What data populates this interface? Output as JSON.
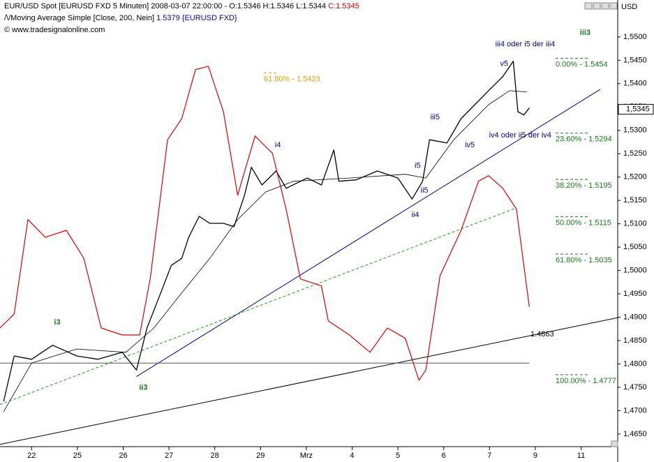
{
  "header": {
    "title": "EUR/USD Spot [EURUSD FXD  5 Minuten] 2008-03-07 22:00:00 - O:1.5346 H:1.5346 L:1.5344",
    "close": "C:1.5345",
    "indicator": "/\\/Moving Average Simple [Close, 200, Nein]",
    "indicator_value": "1.5379 {EURUSD FXD}",
    "copyright": "© www.tradesignalonline.com",
    "unit": "USD"
  },
  "chart_data": {
    "type": "line",
    "xlim": [
      -0.69,
      12.8
    ],
    "ylim": [
      1.4623,
      1.5579
    ],
    "xticks": [
      {
        "value": 0,
        "label": "22"
      },
      {
        "value": 1,
        "label": "25"
      },
      {
        "value": 2,
        "label": "26"
      },
      {
        "value": 3,
        "label": "27"
      },
      {
        "value": 4,
        "label": "28"
      },
      {
        "value": 5,
        "label": "29"
      },
      {
        "value": 6,
        "label": "Mrz"
      },
      {
        "value": 7,
        "label": "4"
      },
      {
        "value": 8,
        "label": "5"
      },
      {
        "value": 9,
        "label": "6"
      },
      {
        "value": 10,
        "label": "7"
      },
      {
        "value": 11,
        "label": "9"
      },
      {
        "value": 12,
        "label": "11"
      }
    ],
    "yticks": [
      {
        "value": 1.465,
        "label": "1,4650"
      },
      {
        "value": 1.47,
        "label": "1,4700"
      },
      {
        "value": 1.475,
        "label": "1,4750"
      },
      {
        "value": 1.48,
        "label": "1,4800"
      },
      {
        "value": 1.485,
        "label": "1,4850"
      },
      {
        "value": 1.49,
        "label": "1,4900"
      },
      {
        "value": 1.495,
        "label": "1,4950"
      },
      {
        "value": 1.5,
        "label": "1,5000"
      },
      {
        "value": 1.505,
        "label": "1,5050"
      },
      {
        "value": 1.51,
        "label": "1,5100"
      },
      {
        "value": 1.515,
        "label": "1,5150"
      },
      {
        "value": 1.52,
        "label": "1,5200"
      },
      {
        "value": 1.525,
        "label": "1,5250"
      },
      {
        "value": 1.53,
        "label": "1,5300"
      },
      {
        "value": 1.535,
        "label": "1,5350"
      },
      {
        "value": 1.54,
        "label": "1,5400"
      },
      {
        "value": 1.545,
        "label": "1,5450"
      },
      {
        "value": 1.55,
        "label": "1,5500"
      }
    ],
    "series": [
      {
        "color": "#000000",
        "width": 1.3,
        "x": [
          -0.61,
          -0.38,
          0,
          0.46,
          0.99,
          1.45,
          1.98,
          2.29,
          2.52,
          2.82,
          3.05,
          3.28,
          3.43,
          3.66,
          3.89,
          4.19,
          4.42,
          4.65,
          4.8,
          5.03,
          5.34,
          5.56,
          6.02,
          6.33,
          6.6,
          6.71,
          7.09,
          7.55,
          8.0,
          8.31,
          8.54,
          8.69,
          9.07,
          9.38,
          9.68,
          9.98,
          10.29,
          10.52,
          10.62,
          10.75,
          10.87
        ],
        "values": [
          1.472,
          1.4817,
          1.481,
          1.484,
          1.4817,
          1.481,
          1.4825,
          1.4787,
          1.4877,
          1.4952,
          1.5011,
          1.5026,
          1.5071,
          1.5116,
          1.5101,
          1.5101,
          1.5094,
          1.5161,
          1.5221,
          1.5183,
          1.5213,
          1.5176,
          1.5198,
          1.5183,
          1.5258,
          1.5191,
          1.5194,
          1.5213,
          1.5198,
          1.5153,
          1.5191,
          1.528,
          1.5273,
          1.5325,
          1.5355,
          1.5385,
          1.5415,
          1.5448,
          1.534,
          1.5333,
          1.5348
        ]
      },
      {
        "color": "#000000",
        "width": 0.8,
        "x": [
          -0.61,
          0,
          0.99,
          2.06,
          2.67,
          3.28,
          3.89,
          4.5,
          5.11,
          5.72,
          6.94,
          8.16,
          8.61,
          9.22,
          9.98,
          10.44,
          10.82
        ],
        "values": [
          1.4698,
          1.4802,
          1.4832,
          1.4825,
          1.4877,
          1.4952,
          1.5026,
          1.5109,
          1.5168,
          1.5191,
          1.5198,
          1.5206,
          1.5198,
          1.528,
          1.5355,
          1.5385,
          1.5382
        ]
      },
      {
        "color": "#e00000",
        "width": 1.2,
        "x": [
          -0.69,
          -0.38,
          -0.08,
          0.3,
          0.76,
          1.14,
          1.52,
          1.98,
          2.36,
          2.59,
          2.97,
          3.28,
          3.58,
          3.86,
          4.19,
          4.5,
          4.88,
          5.26,
          5.56,
          5.87,
          6.33,
          6.48,
          6.94,
          7.39,
          7.77,
          8.16,
          8.46,
          8.61,
          8.92,
          9.38,
          9.76,
          9.98,
          10.29,
          10.59,
          10.75,
          10.87
        ],
        "values": [
          1.4877,
          1.4907,
          1.5109,
          1.5071,
          1.5086,
          1.5026,
          1.4877,
          1.4862,
          1.4862,
          1.4982,
          1.528,
          1.5325,
          1.543,
          1.5437,
          1.534,
          1.5161,
          1.5288,
          1.5251,
          1.5131,
          1.4982,
          1.4967,
          1.4892,
          1.4862,
          1.4825,
          1.4877,
          1.4855,
          1.4765,
          1.4787,
          1.4989,
          1.5086,
          1.5191,
          1.5203,
          1.5176,
          1.5131,
          1.5011,
          1.4922
        ]
      }
    ],
    "trendlines": [
      {
        "color": "#00008b",
        "dash": false,
        "x": [
          2.29,
          12.42
        ],
        "values": [
          1.4773,
          1.5388
        ]
      },
      {
        "color": "#000000",
        "dash": false,
        "x": [
          -0.69,
          12.8
        ],
        "values": [
          1.4628,
          1.4899
        ]
      },
      {
        "color": "#1a9a1a",
        "dash": true,
        "x": [
          -0.69,
          10.59
        ],
        "values": [
          1.4713,
          1.5134
        ]
      },
      {
        "color": "#555555",
        "dash": false,
        "x": [
          -0.69,
          10.87
        ],
        "values": [
          1.4802,
          1.4802
        ]
      }
    ],
    "fib_levels": [
      {
        "label": "0.00% - 1.5454",
        "value": 1.5454
      },
      {
        "label": "23.60% - 1.5294",
        "value": 1.5294
      },
      {
        "label": "38.20% - 1.5195",
        "value": 1.5195
      },
      {
        "label": "50.00% - 1.5115",
        "value": 1.5115
      },
      {
        "label": "61.80% - 1.5035",
        "value": 1.5035
      },
      {
        "label": "100.00% - 1.4777",
        "value": 1.4777
      }
    ],
    "fib_extra": {
      "label": "61.80% - 1.5423",
      "value": 1.5423
    },
    "line_label": 1.4863,
    "last_price": {
      "value": 1.5345,
      "label": "1,5345"
    },
    "wave_labels": [
      {
        "text": "i3",
        "x": 0.56,
        "y": 1.4889,
        "color": "#1a7a1a"
      },
      {
        "text": "ii3",
        "x": 2.44,
        "y": 1.4749,
        "color": "#1a7a1a"
      },
      {
        "text": "iii3",
        "x": 12.09,
        "y": 1.5509,
        "color": "#1a7a1a"
      },
      {
        "text": "i4",
        "x": 5.38,
        "y": 1.5268,
        "color": "#00008b"
      },
      {
        "text": "ii4",
        "x": 8.38,
        "y": 1.5119,
        "color": "#00008b"
      },
      {
        "text": "i5",
        "x": 8.43,
        "y": 1.5224,
        "color": "#00008b"
      },
      {
        "text": "ii5",
        "x": 8.58,
        "y": 1.5171,
        "color": "#00008b"
      },
      {
        "text": "iii5",
        "x": 8.81,
        "y": 1.5328,
        "color": "#00008b"
      },
      {
        "text": "iv5",
        "x": 9.57,
        "y": 1.5268,
        "color": "#00008b"
      },
      {
        "text": "v5",
        "x": 10.32,
        "y": 1.5442,
        "color": "#00008b"
      },
      {
        "text": "iii4 oder i5 der iii4",
        "x": 10.78,
        "y": 1.5484,
        "color": "#00008b"
      },
      {
        "text": "iv4 oder ii5 der iv4",
        "x": 10.67,
        "y": 1.5289,
        "color": "#00008b"
      }
    ]
  }
}
